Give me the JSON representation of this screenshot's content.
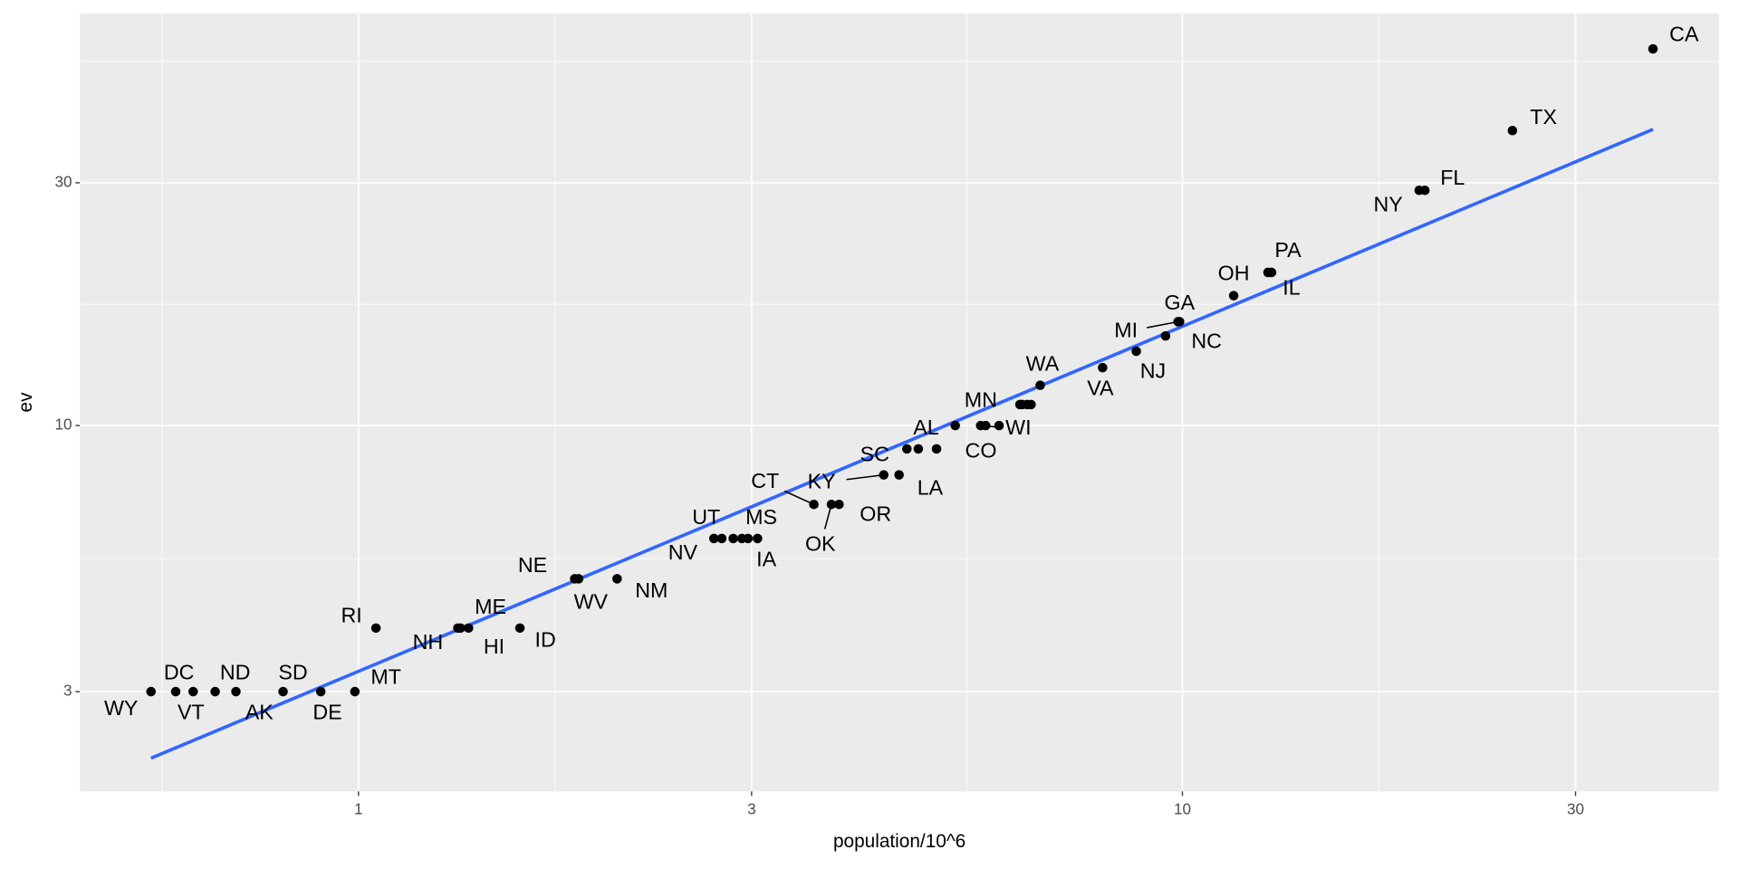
{
  "chart_data": {
    "type": "scatter",
    "x_label": "population/10^6",
    "y_label": "ev",
    "x_log": true,
    "y_log": true,
    "grid": true,
    "point_color": "#000000",
    "x": [
      37.25,
      25.15,
      19.69,
      19.38,
      12.83,
      12.7,
      11.54,
      9.92,
      9.88,
      9.54,
      8.79,
      8.0,
      6.72,
      6.55,
      6.48,
      6.39,
      6.35,
      5.99,
      5.77,
      5.69,
      5.3,
      5.03,
      4.78,
      4.63,
      4.53,
      4.34,
      3.83,
      3.75,
      3.57,
      3.05,
      2.97,
      2.92,
      2.85,
      2.76,
      2.7,
      2.06,
      1.85,
      1.83,
      1.57,
      1.36,
      1.33,
      1.32,
      1.05,
      0.99,
      0.9,
      0.81,
      0.71,
      0.67,
      0.63,
      0.6,
      0.56
    ],
    "values": [
      55,
      38,
      29,
      29,
      20,
      20,
      18,
      16,
      16,
      15,
      14,
      13,
      12,
      11,
      11,
      11,
      11,
      10,
      10,
      10,
      10,
      9,
      9,
      9,
      8,
      8,
      7,
      7,
      7,
      6,
      6,
      6,
      6,
      6,
      6,
      5,
      5,
      5,
      4,
      4,
      4,
      4,
      4,
      3,
      3,
      3,
      3,
      3,
      3,
      3,
      3
    ],
    "labels": [
      "CA",
      "TX",
      "FL",
      "NY",
      "IL",
      "PA",
      "OH",
      "GA",
      "MI",
      "NC",
      "NJ",
      "VA",
      "WA",
      null,
      null,
      null,
      null,
      null,
      null,
      "WI",
      "MN",
      "CO",
      "AL",
      "SC",
      "LA",
      "KY",
      "OR",
      "OK",
      "CT",
      "IA",
      "MS",
      null,
      null,
      "UT",
      "NV",
      "NM",
      "WV",
      "NE",
      "ID",
      "HI",
      "ME",
      "NH",
      "RI",
      "MT",
      "DE",
      "SD",
      "AK",
      "ND",
      "VT",
      "DC",
      "WY"
    ],
    "trend_line": {
      "color": "#3366ff",
      "x": [
        0.56,
        37.25
      ],
      "values": [
        2.22,
        38.2
      ]
    },
    "xlim": [
      0.459,
      44.8
    ],
    "ylim": [
      1.91,
      64.6
    ],
    "xticks": [
      1,
      3,
      10,
      30
    ],
    "yticks": [
      3,
      10,
      30
    ]
  }
}
